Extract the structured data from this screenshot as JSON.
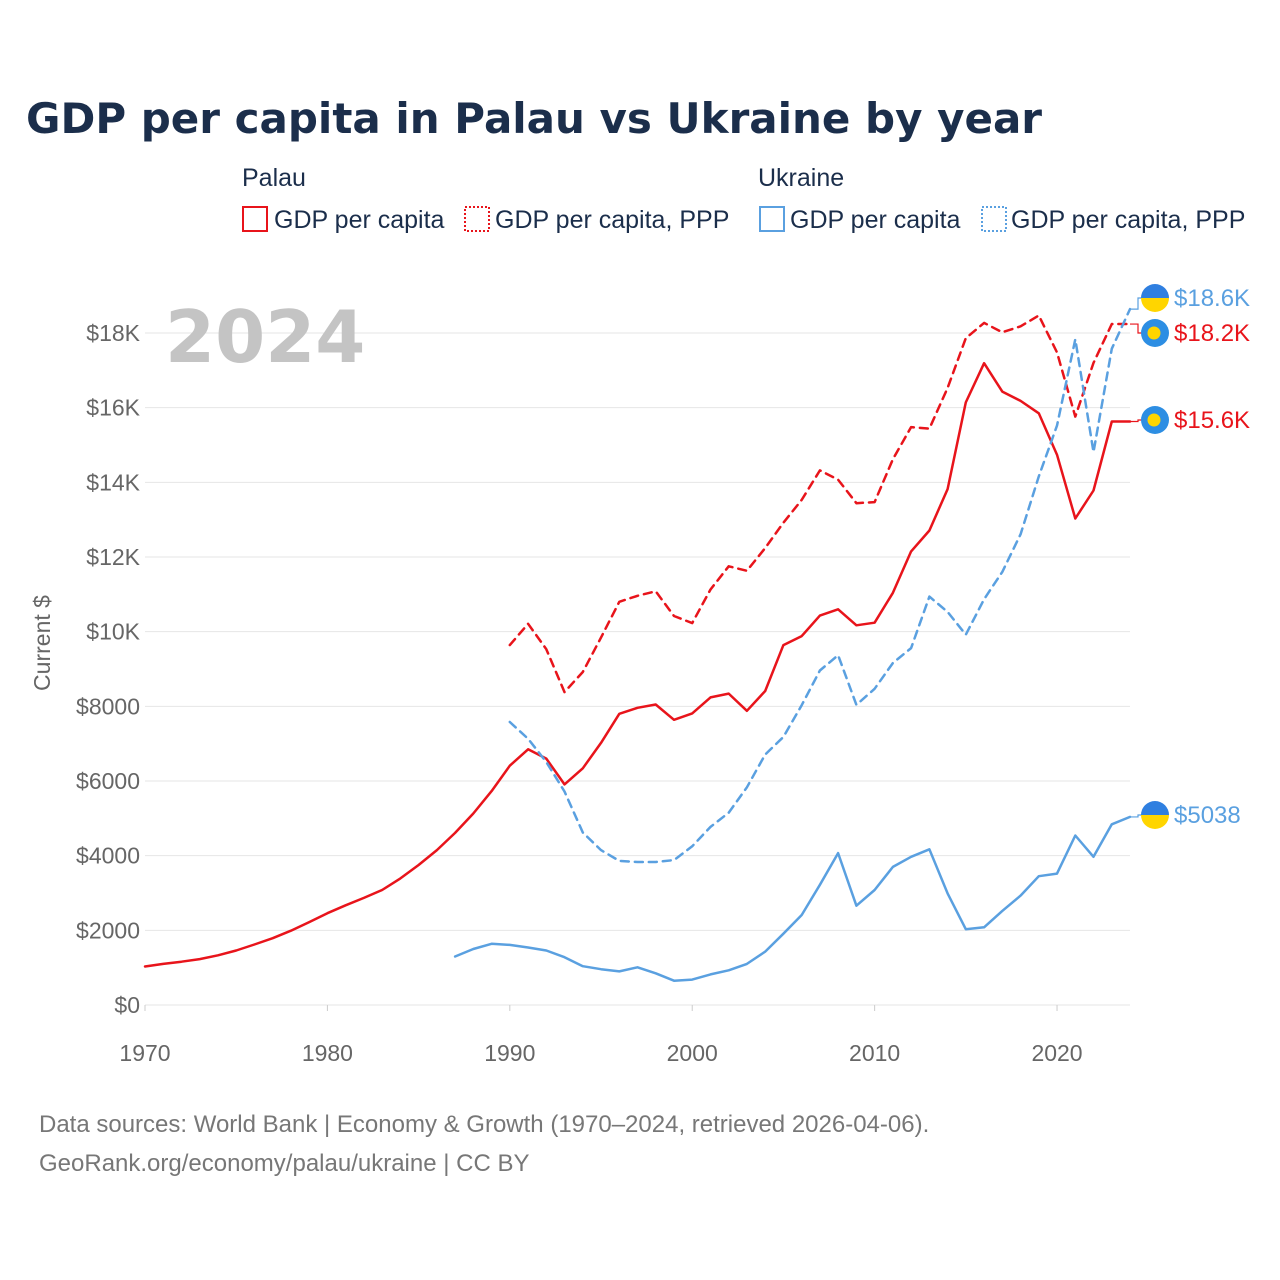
{
  "title": "GDP per capita in Palau vs Ukraine by year",
  "year_label": "2024",
  "legend": [
    {
      "group": "Palau",
      "items": [
        {
          "label": "GDP per capita",
          "color": "#e8141b",
          "style": "solid"
        },
        {
          "label": "GDP per capita, PPP",
          "color": "#e8141b",
          "style": "dotted"
        }
      ]
    },
    {
      "group": "Ukraine",
      "items": [
        {
          "label": "GDP per capita",
          "color": "#5aa0e0",
          "style": "solid"
        },
        {
          "label": "GDP per capita, PPP",
          "color": "#5aa0e0",
          "style": "dotted"
        }
      ]
    }
  ],
  "footer": {
    "line1": "Data sources: World Bank | Economy & Growth (1970–2024, retrieved 2026-04-06).",
    "line2": "GeoRank.org/economy/palau/ukraine | CC BY"
  },
  "chart_data": {
    "type": "line",
    "title": "GDP per capita in Palau vs Ukraine by year",
    "xlabel": "",
    "ylabel": "Current $",
    "xlim": [
      1970,
      2024
    ],
    "ylim": [
      0,
      18800
    ],
    "x_ticks": [
      1970,
      1980,
      1990,
      2000,
      2010,
      2020
    ],
    "x_tick_labels": [
      "1970",
      "1980",
      "1990",
      "2000",
      "2010",
      "2020"
    ],
    "y_ticks": [
      0,
      2000,
      4000,
      6000,
      8000,
      10000,
      12000,
      14000,
      16000,
      18000
    ],
    "y_tick_labels": [
      "$0",
      "$2000",
      "$4000",
      "$6000",
      "$8000",
      "$10K",
      "$12K",
      "$14K",
      "$16K",
      "$18K"
    ],
    "grid": true,
    "series": [
      {
        "name": "Palau GDP per capita",
        "color": "#e8141b",
        "dash": "solid",
        "end_label": "$15.6K",
        "marker": "palau-flag",
        "x": [
          1970,
          1971,
          1972,
          1973,
          1974,
          1975,
          1976,
          1977,
          1978,
          1979,
          1980,
          1981,
          1982,
          1983,
          1984,
          1985,
          1986,
          1987,
          1988,
          1989,
          1990,
          1991,
          1992,
          1993,
          1994,
          1995,
          1996,
          1997,
          1998,
          1999,
          2000,
          2001,
          2002,
          2003,
          2004,
          2005,
          2006,
          2007,
          2008,
          2009,
          2010,
          2011,
          2012,
          2013,
          2014,
          2015,
          2016,
          2017,
          2018,
          2019,
          2020,
          2021,
          2022,
          2023,
          2024
        ],
        "values": [
          1030,
          1100,
          1160,
          1230,
          1330,
          1460,
          1620,
          1790,
          1990,
          2220,
          2460,
          2670,
          2870,
          3080,
          3390,
          3750,
          4150,
          4610,
          5130,
          5730,
          6410,
          6850,
          6600,
          5910,
          6340,
          7020,
          7800,
          7960,
          8050,
          7640,
          7810,
          8240,
          8340,
          7880,
          8410,
          9640,
          9880,
          10430,
          10600,
          10170,
          10240,
          11040,
          12150,
          12710,
          13820,
          16140,
          17190,
          16430,
          16180,
          15850,
          14740,
          13030,
          13780,
          15630,
          15630
        ]
      },
      {
        "name": "Palau GDP per capita, PPP",
        "color": "#e8141b",
        "dash": "dashed",
        "end_label": "$18.2K",
        "marker": "palau-flag",
        "x": [
          1990,
          1991,
          1992,
          1993,
          1994,
          1995,
          1996,
          1997,
          1998,
          1999,
          2000,
          2001,
          2002,
          2003,
          2004,
          2005,
          2006,
          2007,
          2008,
          2009,
          2010,
          2011,
          2012,
          2013,
          2014,
          2015,
          2016,
          2017,
          2018,
          2019,
          2020,
          2021,
          2022,
          2023,
          2024
        ],
        "values": [
          9640,
          10210,
          9530,
          8380,
          8920,
          9840,
          10800,
          10960,
          11080,
          10420,
          10230,
          11130,
          11750,
          11630,
          12240,
          12920,
          13530,
          14320,
          14070,
          13440,
          13470,
          14620,
          15480,
          15440,
          16530,
          17860,
          18270,
          18020,
          18180,
          18470,
          17480,
          15760,
          17200,
          18240,
          18240
        ]
      },
      {
        "name": "Ukraine GDP per capita",
        "color": "#5aa0e0",
        "dash": "solid",
        "end_label": "$5038",
        "marker": "ukraine-flag",
        "x": [
          1987,
          1988,
          1989,
          1990,
          1991,
          1992,
          1993,
          1994,
          1995,
          1996,
          1997,
          1998,
          1999,
          2000,
          2001,
          2002,
          2003,
          2004,
          2005,
          2006,
          2007,
          2008,
          2009,
          2010,
          2011,
          2012,
          2013,
          2014,
          2015,
          2016,
          2017,
          2018,
          2019,
          2020,
          2021,
          2022,
          2023,
          2024
        ],
        "values": [
          1300,
          1500,
          1640,
          1610,
          1540,
          1460,
          1280,
          1040,
          960,
          900,
          1010,
          850,
          650,
          680,
          820,
          930,
          1100,
          1430,
          1910,
          2410,
          3220,
          4070,
          2660,
          3080,
          3700,
          3970,
          4170,
          2990,
          2030,
          2080,
          2520,
          2930,
          3450,
          3520,
          4540,
          3970,
          4840,
          5038
        ]
      },
      {
        "name": "Ukraine GDP per capita, PPP",
        "color": "#5aa0e0",
        "dash": "dashed",
        "end_label": "$18.6K",
        "marker": "ukraine-flag",
        "x": [
          1990,
          1991,
          1992,
          1993,
          1994,
          1995,
          1996,
          1997,
          1998,
          1999,
          2000,
          2001,
          2002,
          2003,
          2004,
          2005,
          2006,
          2007,
          2008,
          2009,
          2010,
          2011,
          2012,
          2013,
          2014,
          2015,
          2016,
          2017,
          2018,
          2019,
          2020,
          2021,
          2022,
          2023,
          2024
        ],
        "values": [
          7580,
          7130,
          6510,
          5720,
          4620,
          4150,
          3860,
          3830,
          3830,
          3880,
          4250,
          4770,
          5150,
          5830,
          6710,
          7180,
          8030,
          8960,
          9370,
          8040,
          8470,
          9160,
          9560,
          10940,
          10530,
          9920,
          10870,
          11600,
          12610,
          14160,
          15520,
          17830,
          14810,
          17580,
          18640
        ]
      }
    ]
  }
}
